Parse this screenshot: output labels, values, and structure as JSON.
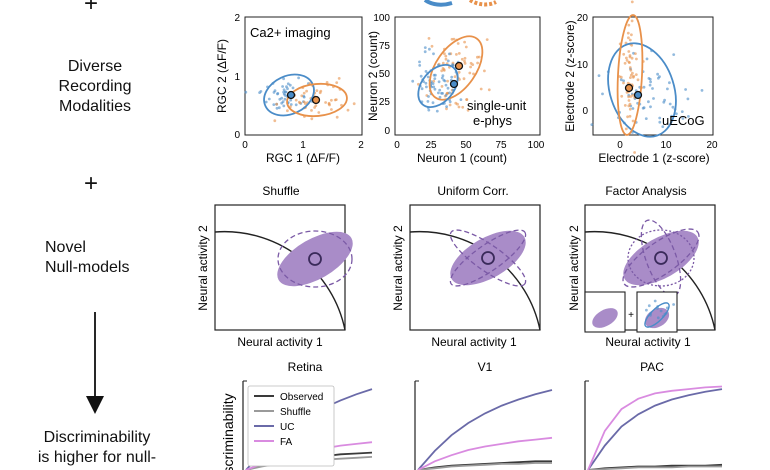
{
  "left_column": {
    "plus_symbol": "+",
    "modalities_text": [
      "Diverse",
      "Recording",
      "Modalities"
    ],
    "null_models_text": [
      "Novel",
      "Null-models"
    ],
    "conclusion_text": [
      "Discriminability",
      "is higher for null-"
    ]
  },
  "row1": {
    "panels": [
      {
        "label": "Ca2+ imaging",
        "xlabel": "RGC 1 (ΔF/F)",
        "ylabel": "RGC 2 (ΔF/F)",
        "xticks": [
          "0",
          "1",
          "2"
        ],
        "yticks": [
          "0",
          "1",
          "2"
        ]
      },
      {
        "label": "single-unit\ne-phys",
        "xlabel": "Neuron 1 (count)",
        "ylabel": "Neuron 2 (count)",
        "xticks": [
          "0",
          "25",
          "50",
          "75",
          "100"
        ],
        "yticks": [
          "0",
          "25",
          "50",
          "75",
          "100"
        ]
      },
      {
        "label": "uECoG",
        "xlabel": "Electrode 1 (z-score)",
        "ylabel": "Electrode 2 (z-score)",
        "xticks": [
          "0",
          "10",
          "20"
        ],
        "yticks": [
          "0",
          "10",
          "20"
        ]
      }
    ]
  },
  "row2": {
    "panels": [
      {
        "title": "Shuffle",
        "xlabel": "Neural activity 1",
        "ylabel": "Neural activity 2"
      },
      {
        "title": "Uniform Corr.",
        "xlabel": "Neural activity 1",
        "ylabel": "Neural activity 2"
      },
      {
        "title": "Factor Analysis",
        "xlabel": "Neural activity 1",
        "ylabel": "Neural activity 2",
        "inset_operator": "+"
      }
    ]
  },
  "row3": {
    "ylabel": "Discriminability",
    "legend": [
      {
        "name": "Observed",
        "color": "#3a3a3a"
      },
      {
        "name": "Shuffle",
        "color": "#9a9a9a"
      },
      {
        "name": "UC",
        "color": "#6a6aa8"
      },
      {
        "name": "FA",
        "color": "#d98be0"
      }
    ],
    "panels": [
      {
        "title": "Retina"
      },
      {
        "title": "V1"
      },
      {
        "title": "PAC"
      }
    ]
  },
  "colors": {
    "blue": "#4a8cc8",
    "orange": "#e8914a",
    "purple": "#7b5aa6",
    "purple_fill": "#a98cc8",
    "axis": "#222222"
  },
  "chart_data": [
    {
      "type": "line",
      "title": "Retina",
      "series": [
        {
          "name": "Observed",
          "values": [
            0.0,
            0.05,
            0.09,
            0.12,
            0.14,
            0.16,
            0.18,
            0.19,
            0.2
          ]
        },
        {
          "name": "Shuffle",
          "values": [
            0.0,
            0.04,
            0.07,
            0.09,
            0.11,
            0.12,
            0.13,
            0.14,
            0.15
          ]
        },
        {
          "name": "UC",
          "values": [
            0.0,
            0.2,
            0.38,
            0.52,
            0.63,
            0.72,
            0.8,
            0.87,
            0.93
          ]
        },
        {
          "name": "FA",
          "values": [
            0.0,
            0.07,
            0.13,
            0.18,
            0.22,
            0.25,
            0.28,
            0.3,
            0.32
          ]
        }
      ]
    },
    {
      "type": "line",
      "title": "V1",
      "series": [
        {
          "name": "Observed",
          "values": [
            0.0,
            0.03,
            0.05,
            0.06,
            0.07,
            0.08,
            0.09,
            0.1,
            0.1
          ]
        },
        {
          "name": "Shuffle",
          "values": [
            0.0,
            0.02,
            0.04,
            0.05,
            0.06,
            0.07,
            0.07,
            0.08,
            0.08
          ]
        },
        {
          "name": "UC",
          "values": [
            0.0,
            0.22,
            0.4,
            0.54,
            0.65,
            0.74,
            0.81,
            0.87,
            0.92
          ]
        },
        {
          "name": "FA",
          "values": [
            0.0,
            0.1,
            0.17,
            0.23,
            0.27,
            0.3,
            0.33,
            0.35,
            0.37
          ]
        }
      ]
    },
    {
      "type": "line",
      "title": "PAC",
      "series": [
        {
          "name": "Observed",
          "values": [
            0.0,
            0.02,
            0.03,
            0.04,
            0.04,
            0.05,
            0.05,
            0.05,
            0.06
          ]
        },
        {
          "name": "Shuffle",
          "values": [
            0.0,
            0.01,
            0.02,
            0.03,
            0.03,
            0.03,
            0.04,
            0.04,
            0.04
          ]
        },
        {
          "name": "UC",
          "values": [
            0.0,
            0.28,
            0.5,
            0.64,
            0.74,
            0.81,
            0.86,
            0.9,
            0.93
          ]
        },
        {
          "name": "FA",
          "values": [
            0.0,
            0.45,
            0.7,
            0.82,
            0.88,
            0.91,
            0.93,
            0.95,
            0.96
          ]
        }
      ]
    }
  ]
}
